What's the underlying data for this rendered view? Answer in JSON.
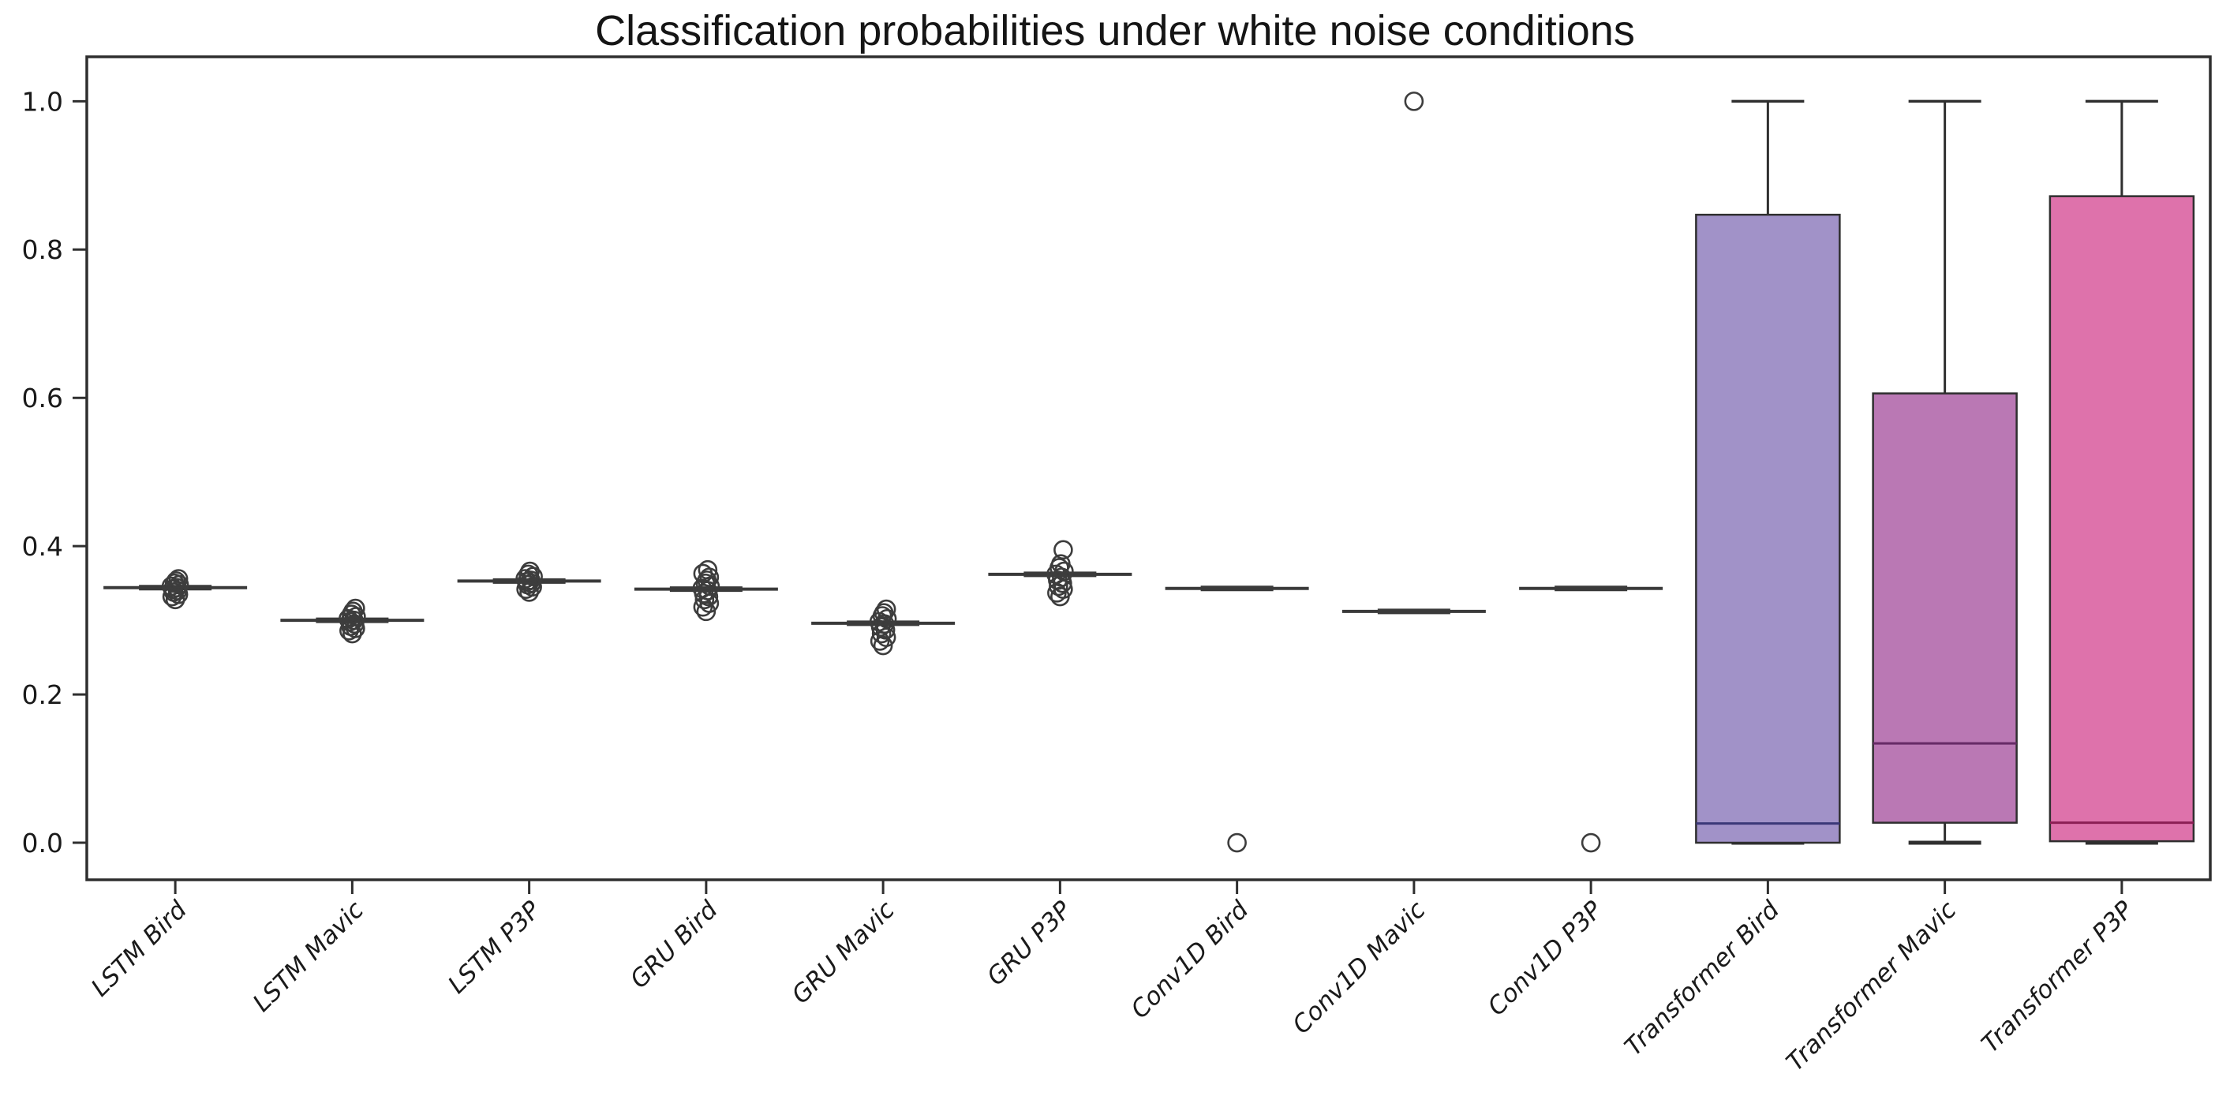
{
  "chart_data": {
    "type": "boxplot",
    "title": "Classification probabilities under white noise conditions",
    "xlabel": "",
    "ylabel": "",
    "grid": false,
    "legend": null,
    "ylim": [
      -0.05,
      1.06
    ],
    "yticks": [
      0.0,
      0.2,
      0.4,
      0.6,
      0.8,
      1.0
    ],
    "ytick_labels": [
      "0.0",
      "0.2",
      "0.4",
      "0.6",
      "0.8",
      "1.0"
    ],
    "categories": [
      "LSTM Bird",
      "LSTM Mavic",
      "LSTM P3P",
      "GRU Bird",
      "GRU Mavic",
      "GRU P3P",
      "Conv1D Bird",
      "Conv1D Mavic",
      "Conv1D P3P",
      "Transformer Bird",
      "Transformer Mavic",
      "Transformer P3P"
    ],
    "colors": {
      "axis": "#2f2f2f",
      "flat_box_line": "#3a3a3a",
      "flier_stroke": "#3d3d3d",
      "background": "#ffffff"
    },
    "series": [
      {
        "label": "LSTM Bird",
        "collapsed": true,
        "median": 0.344,
        "q1": 0.344,
        "q3": 0.344,
        "whisker_low": 0.344,
        "whisker_high": 0.344,
        "fill": null,
        "median_color": null,
        "fliers": [
          0.328,
          0.332,
          0.335,
          0.338,
          0.34,
          0.342,
          0.344,
          0.346,
          0.348,
          0.35,
          0.353,
          0.356
        ]
      },
      {
        "label": "LSTM Mavic",
        "collapsed": true,
        "median": 0.3,
        "q1": 0.3,
        "q3": 0.3,
        "whisker_low": 0.3,
        "whisker_high": 0.3,
        "fill": null,
        "median_color": null,
        "fliers": [
          0.282,
          0.286,
          0.289,
          0.292,
          0.295,
          0.298,
          0.3,
          0.302,
          0.305,
          0.308,
          0.312,
          0.316
        ]
      },
      {
        "label": "LSTM P3P",
        "collapsed": true,
        "median": 0.353,
        "q1": 0.353,
        "q3": 0.353,
        "whisker_low": 0.353,
        "whisker_high": 0.353,
        "fill": null,
        "median_color": null,
        "fliers": [
          0.338,
          0.342,
          0.345,
          0.348,
          0.35,
          0.352,
          0.354,
          0.356,
          0.359,
          0.362,
          0.366
        ]
      },
      {
        "label": "GRU Bird",
        "collapsed": true,
        "median": 0.342,
        "q1": 0.342,
        "q3": 0.342,
        "whisker_low": 0.342,
        "whisker_high": 0.342,
        "fill": null,
        "median_color": null,
        "fliers": [
          0.312,
          0.318,
          0.323,
          0.328,
          0.332,
          0.336,
          0.34,
          0.343,
          0.346,
          0.35,
          0.354,
          0.358,
          0.363,
          0.368
        ]
      },
      {
        "label": "GRU Mavic",
        "collapsed": true,
        "median": 0.296,
        "q1": 0.296,
        "q3": 0.296,
        "whisker_low": 0.296,
        "whisker_high": 0.296,
        "fill": null,
        "median_color": null,
        "fliers": [
          0.266,
          0.272,
          0.277,
          0.282,
          0.287,
          0.291,
          0.295,
          0.298,
          0.302,
          0.306,
          0.31,
          0.315
        ]
      },
      {
        "label": "GRU P3P",
        "collapsed": true,
        "median": 0.362,
        "q1": 0.362,
        "q3": 0.362,
        "whisker_low": 0.362,
        "whisker_high": 0.362,
        "fill": null,
        "median_color": null,
        "fliers": [
          0.332,
          0.337,
          0.342,
          0.346,
          0.35,
          0.354,
          0.358,
          0.362,
          0.366,
          0.371,
          0.376,
          0.395
        ]
      },
      {
        "label": "Conv1D Bird",
        "collapsed": true,
        "median": 0.343,
        "q1": 0.343,
        "q3": 0.343,
        "whisker_low": 0.343,
        "whisker_high": 0.343,
        "fill": null,
        "median_color": null,
        "fliers": [
          0.0
        ]
      },
      {
        "label": "Conv1D Mavic",
        "collapsed": true,
        "median": 0.312,
        "q1": 0.312,
        "q3": 0.312,
        "whisker_low": 0.312,
        "whisker_high": 0.312,
        "fill": null,
        "median_color": null,
        "fliers": [
          1.0
        ]
      },
      {
        "label": "Conv1D P3P",
        "collapsed": true,
        "median": 0.343,
        "q1": 0.343,
        "q3": 0.343,
        "whisker_low": 0.343,
        "whisker_high": 0.343,
        "fill": null,
        "median_color": null,
        "fliers": [
          0.0
        ]
      },
      {
        "label": "Transformer Bird",
        "collapsed": false,
        "median": 0.026,
        "q1": 0.0,
        "q3": 0.847,
        "whisker_low": 0.0,
        "whisker_high": 1.0,
        "fill": "#a192c8",
        "median_color": "#3b3878",
        "fliers": []
      },
      {
        "label": "Transformer Mavic",
        "collapsed": false,
        "median": 0.134,
        "q1": 0.027,
        "q3": 0.606,
        "whisker_low": 0.0,
        "whisker_high": 1.0,
        "fill": "#ba78b4",
        "median_color": "#662a66",
        "fliers": []
      },
      {
        "label": "Transformer P3P",
        "collapsed": false,
        "median": 0.027,
        "q1": 0.002,
        "q3": 0.872,
        "whisker_low": 0.0,
        "whisker_high": 1.0,
        "fill": "#de72ab",
        "median_color": "#8c1f55",
        "fliers": []
      }
    ]
  }
}
